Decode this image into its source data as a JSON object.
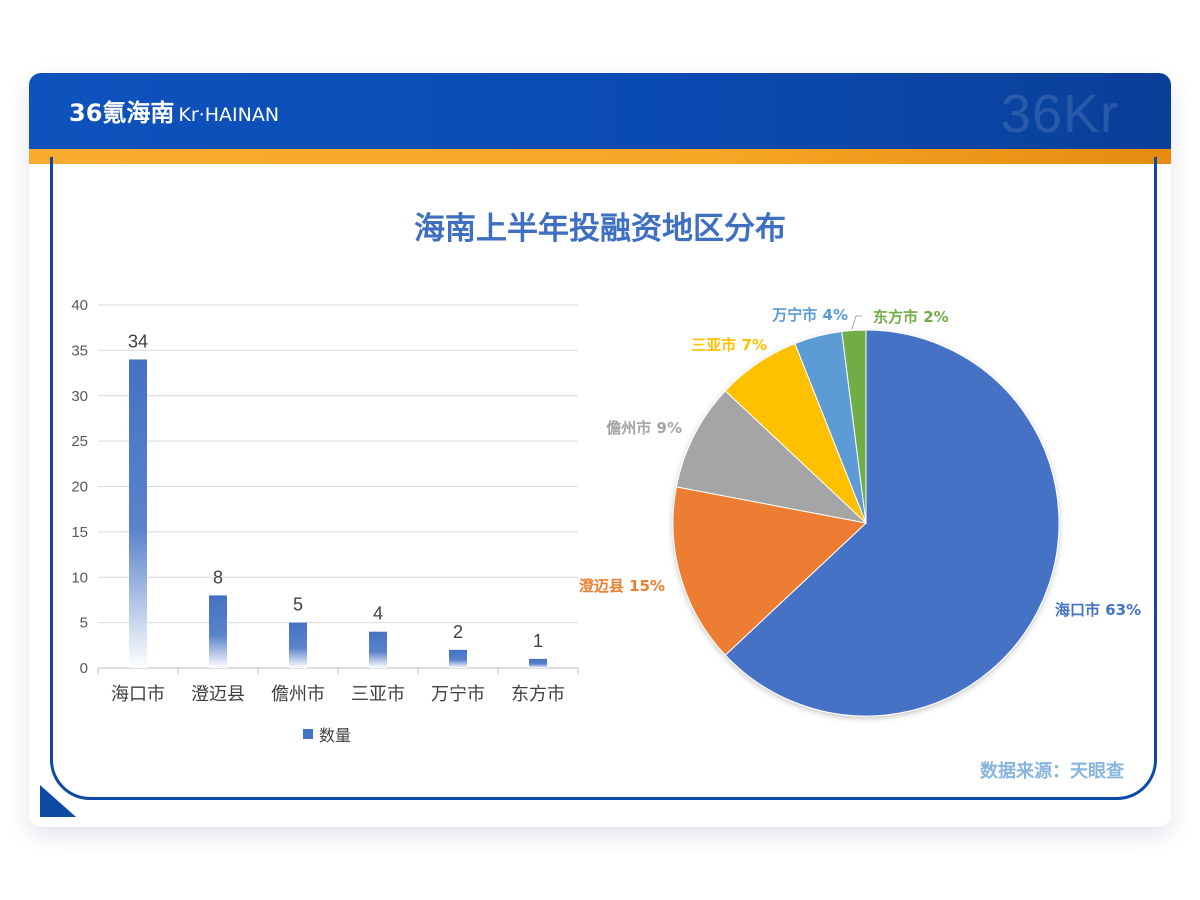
{
  "header": {
    "brand_main": "36氪海南",
    "brand_sub": "Kr·HAINAN",
    "watermark": "36Kr"
  },
  "title": "海南上半年投融资地区分布",
  "source": "数据来源：天眼查",
  "colors": {
    "header_blue": "#0e52bd",
    "accent_orange": "#f9ab30",
    "title": "#3f6fc1",
    "bar": "#4472c4"
  },
  "chart_data": [
    {
      "type": "bar",
      "categories": [
        "海口市",
        "澄迈县",
        "儋州市",
        "三亚市",
        "万宁市",
        "东方市"
      ],
      "series": [
        {
          "name": "数量",
          "values": [
            34,
            8,
            5,
            4,
            2,
            1
          ]
        }
      ],
      "ylim": [
        0,
        40
      ],
      "yticks": [
        0,
        5,
        10,
        15,
        20,
        25,
        30,
        35,
        40
      ],
      "grid": true,
      "legend": "bottom",
      "data_labels": true
    },
    {
      "type": "pie",
      "labels": [
        "海口市",
        "澄迈县",
        "儋州市",
        "三亚市",
        "万宁市",
        "东方市"
      ],
      "values": [
        63,
        15,
        9,
        7,
        4,
        2
      ],
      "label_text": [
        "海口市 63%",
        "澄迈县 15%",
        "儋州市 9%",
        "三亚市 7%",
        "万宁市 4%",
        "东方市 2%"
      ],
      "colors": [
        "#4472c4",
        "#ed7d31",
        "#a5a5a5",
        "#ffc000",
        "#5b9bd5",
        "#70ad47"
      ]
    }
  ]
}
